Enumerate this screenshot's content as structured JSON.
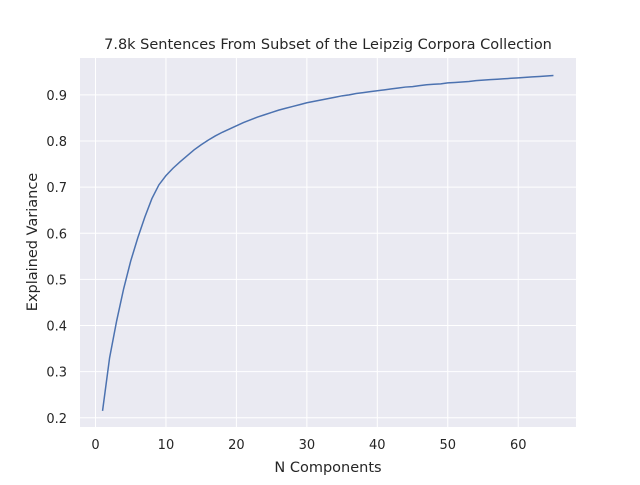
{
  "chart_data": {
    "type": "line",
    "title": "7.8k Sentences From Subset of the Leipzig Corpora Collection",
    "xlabel": "N Components",
    "ylabel": "Explained Variance",
    "xlim": [
      -2.2,
      68.2
    ],
    "ylim": [
      0.18,
      0.98
    ],
    "xticks": [
      0,
      10,
      20,
      30,
      40,
      50,
      60
    ],
    "yticks": [
      0.2,
      0.3,
      0.4,
      0.5,
      0.6,
      0.7,
      0.8,
      0.9
    ],
    "xtick_labels": [
      "0",
      "10",
      "20",
      "30",
      "40",
      "50",
      "60"
    ],
    "ytick_labels": [
      "0.2",
      "0.3",
      "0.4",
      "0.5",
      "0.6",
      "0.7",
      "0.8",
      "0.9"
    ],
    "grid": true,
    "colors": {
      "background": "#eaeaf2",
      "grid": "#ffffff",
      "line": "#4c72b0"
    },
    "series": [
      {
        "x": [
          1,
          2,
          3,
          4,
          5,
          6,
          7,
          8,
          9,
          10,
          11,
          12,
          13,
          14,
          15,
          16,
          17,
          18,
          19,
          20,
          21,
          22,
          23,
          24,
          25,
          26,
          27,
          28,
          29,
          30,
          31,
          32,
          33,
          34,
          35,
          36,
          37,
          38,
          39,
          40,
          41,
          42,
          43,
          44,
          45,
          46,
          47,
          48,
          49,
          50,
          51,
          52,
          53,
          54,
          55,
          56,
          57,
          58,
          59,
          60,
          61,
          62,
          63,
          64,
          65
        ],
        "values": [
          0.215,
          0.33,
          0.41,
          0.48,
          0.54,
          0.59,
          0.635,
          0.675,
          0.705,
          0.725,
          0.741,
          0.755,
          0.768,
          0.781,
          0.792,
          0.802,
          0.811,
          0.819,
          0.826,
          0.833,
          0.84,
          0.846,
          0.852,
          0.857,
          0.862,
          0.867,
          0.871,
          0.875,
          0.879,
          0.883,
          0.886,
          0.889,
          0.892,
          0.895,
          0.898,
          0.9,
          0.903,
          0.905,
          0.907,
          0.909,
          0.911,
          0.913,
          0.915,
          0.917,
          0.918,
          0.92,
          0.922,
          0.923,
          0.924,
          0.926,
          0.927,
          0.928,
          0.929,
          0.931,
          0.932,
          0.933,
          0.934,
          0.935,
          0.936,
          0.937,
          0.938,
          0.939,
          0.94,
          0.941,
          0.942
        ]
      }
    ]
  }
}
